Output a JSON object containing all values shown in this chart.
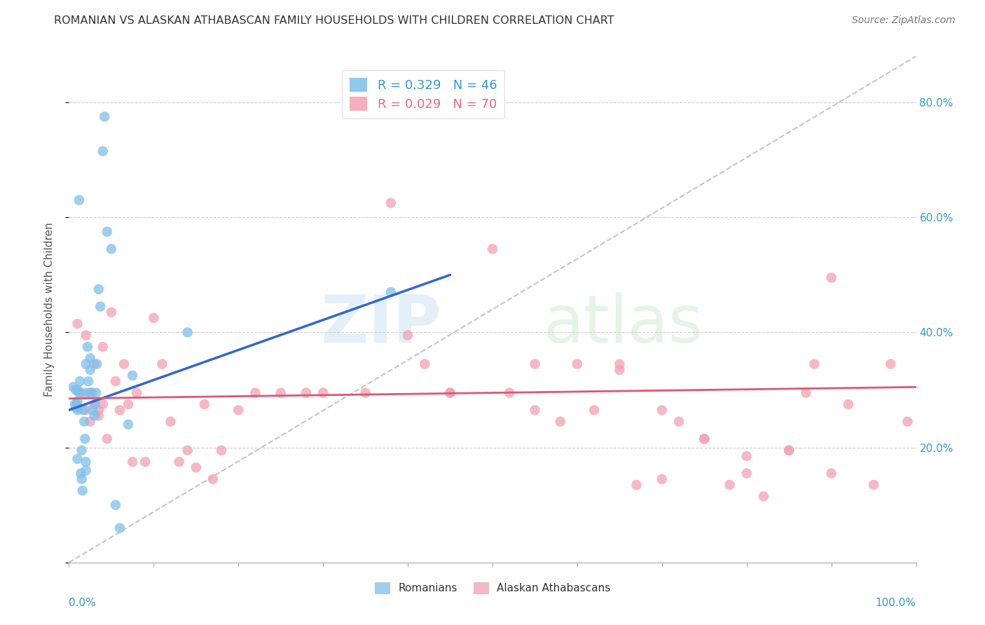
{
  "title": "ROMANIAN VS ALASKAN ATHABASCAN FAMILY HOUSEHOLDS WITH CHILDREN CORRELATION CHART",
  "source": "Source: ZipAtlas.com",
  "ylabel": "Family Households with Children",
  "blue_color": "#7fbfea",
  "pink_color": "#f4a0b0",
  "blue_line_color": "#3366cc",
  "pink_line_color": "#e05575",
  "diagonal_color": "#bbbbbb",
  "blue_line_x": [
    0.0,
    0.45
  ],
  "blue_line_y": [
    0.265,
    0.5
  ],
  "pink_line_x": [
    0.0,
    1.0
  ],
  "pink_line_y": [
    0.285,
    0.305
  ],
  "romanians_x": [
    0.005,
    0.007,
    0.008,
    0.009,
    0.01,
    0.01,
    0.01,
    0.01,
    0.012,
    0.013,
    0.014,
    0.015,
    0.015,
    0.016,
    0.017,
    0.018,
    0.019,
    0.02,
    0.02,
    0.021,
    0.022,
    0.023,
    0.025,
    0.025,
    0.027,
    0.028,
    0.03,
    0.031,
    0.032,
    0.033,
    0.035,
    0.037,
    0.04,
    0.042,
    0.045,
    0.05,
    0.055,
    0.06,
    0.07,
    0.075,
    0.01,
    0.008,
    0.38,
    0.14,
    0.012,
    0.02
  ],
  "romanians_y": [
    0.305,
    0.275,
    0.27,
    0.275,
    0.3,
    0.27,
    0.265,
    0.28,
    0.295,
    0.315,
    0.155,
    0.195,
    0.145,
    0.125,
    0.265,
    0.245,
    0.215,
    0.175,
    0.345,
    0.295,
    0.375,
    0.315,
    0.355,
    0.335,
    0.295,
    0.265,
    0.255,
    0.275,
    0.295,
    0.345,
    0.475,
    0.445,
    0.715,
    0.775,
    0.575,
    0.545,
    0.1,
    0.06,
    0.24,
    0.325,
    0.18,
    0.3,
    0.47,
    0.4,
    0.63,
    0.16
  ],
  "athabascans_x": [
    0.01,
    0.015,
    0.02,
    0.02,
    0.025,
    0.025,
    0.03,
    0.03,
    0.035,
    0.035,
    0.04,
    0.04,
    0.045,
    0.05,
    0.055,
    0.06,
    0.065,
    0.07,
    0.075,
    0.08,
    0.09,
    0.1,
    0.11,
    0.12,
    0.13,
    0.14,
    0.15,
    0.16,
    0.17,
    0.18,
    0.2,
    0.22,
    0.25,
    0.28,
    0.3,
    0.35,
    0.38,
    0.4,
    0.42,
    0.45,
    0.5,
    0.52,
    0.55,
    0.58,
    0.6,
    0.62,
    0.65,
    0.67,
    0.7,
    0.72,
    0.75,
    0.78,
    0.8,
    0.82,
    0.85,
    0.87,
    0.88,
    0.9,
    0.92,
    0.95,
    0.97,
    0.99,
    0.45,
    0.55,
    0.65,
    0.7,
    0.75,
    0.8,
    0.85,
    0.9
  ],
  "athabascans_y": [
    0.415,
    0.295,
    0.265,
    0.395,
    0.245,
    0.295,
    0.345,
    0.275,
    0.265,
    0.255,
    0.375,
    0.275,
    0.215,
    0.435,
    0.315,
    0.265,
    0.345,
    0.275,
    0.175,
    0.295,
    0.175,
    0.425,
    0.345,
    0.245,
    0.175,
    0.195,
    0.165,
    0.275,
    0.145,
    0.195,
    0.265,
    0.295,
    0.295,
    0.295,
    0.295,
    0.295,
    0.625,
    0.395,
    0.345,
    0.295,
    0.545,
    0.295,
    0.345,
    0.245,
    0.345,
    0.265,
    0.345,
    0.135,
    0.265,
    0.245,
    0.215,
    0.135,
    0.155,
    0.115,
    0.195,
    0.295,
    0.345,
    0.495,
    0.275,
    0.135,
    0.345,
    0.245,
    0.295,
    0.265,
    0.335,
    0.145,
    0.215,
    0.185,
    0.195,
    0.155
  ],
  "ytick_vals": [
    0.0,
    0.2,
    0.4,
    0.6,
    0.8
  ],
  "ytick_labels": [
    "",
    "20.0%",
    "40.0%",
    "60.0%",
    "80.0%"
  ],
  "ymin": 0.0,
  "ymax": 0.88,
  "xmin": 0.0,
  "xmax": 1.0
}
